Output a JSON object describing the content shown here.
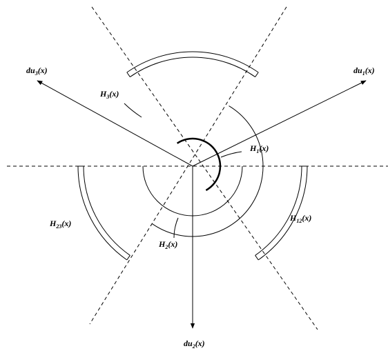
{
  "labels": [
    {
      "base": "du",
      "sub": "1",
      "arg": "(x)"
    },
    {
      "base": "du",
      "sub": "2",
      "arg": "(x)"
    },
    {
      "base": "du",
      "sub": "3",
      "arg": "(x)"
    },
    {
      "base": "H",
      "sub": "1",
      "arg": "(x)"
    },
    {
      "base": "H",
      "sub": "2",
      "arg": "(x)"
    },
    {
      "base": "H",
      "sub": "3",
      "arg": "(x)"
    },
    {
      "base": "H",
      "sub": "12",
      "arg": "(x)"
    },
    {
      "base": "H",
      "sub": "23",
      "arg": "(x)"
    }
  ]
}
